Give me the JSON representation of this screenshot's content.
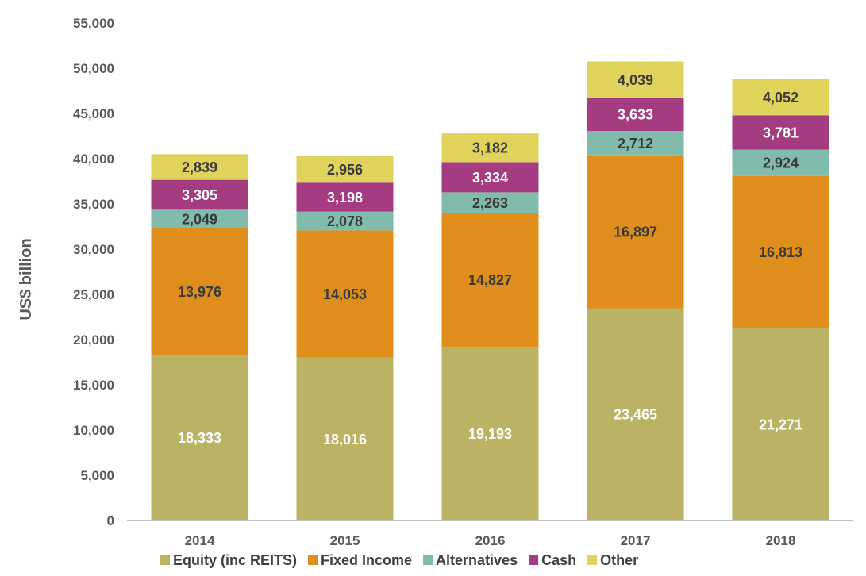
{
  "chart_data": {
    "type": "bar",
    "stacked": true,
    "title": "",
    "xlabel": "",
    "ylabel": "US$ billion",
    "ylim": [
      0,
      55000
    ],
    "yticks": [
      0,
      5000,
      10000,
      15000,
      20000,
      25000,
      30000,
      35000,
      40000,
      45000,
      50000,
      55000
    ],
    "ytick_labels": [
      "0",
      "5,000",
      "10,000",
      "15,000",
      "20,000",
      "25,000",
      "30,000",
      "35,000",
      "40,000",
      "45,000",
      "50,000",
      "55,000"
    ],
    "categories": [
      "2014",
      "2015",
      "2016",
      "2017",
      "2018"
    ],
    "grid": false,
    "legend_position": "bottom",
    "series": [
      {
        "name": "Equity (inc REITS)",
        "color": "#bab363",
        "label_color": "#ffffff",
        "values": [
          18333,
          18016,
          19193,
          23465,
          21271
        ],
        "labels": [
          "18,333",
          "18,016",
          "19,193",
          "23,465",
          "21,271"
        ]
      },
      {
        "name": "Fixed Income",
        "color": "#df8e1c",
        "label_color": "#3a3a3a",
        "values": [
          13976,
          14053,
          14827,
          16897,
          16813
        ],
        "labels": [
          "13,976",
          "14,053",
          "14,827",
          "16,897",
          "16,813"
        ]
      },
      {
        "name": "Alternatives",
        "color": "#80bbab",
        "label_color": "#3a3a3a",
        "values": [
          2049,
          2078,
          2263,
          2712,
          2924
        ],
        "labels": [
          "2,049",
          "2,078",
          "2,263",
          "2,712",
          "2,924"
        ]
      },
      {
        "name": "Cash",
        "color": "#a53b80",
        "label_color": "#ffffff",
        "values": [
          3305,
          3198,
          3334,
          3633,
          3781
        ],
        "labels": [
          "3,305",
          "3,198",
          "3,334",
          "3,633",
          "3,781"
        ]
      },
      {
        "name": "Other",
        "color": "#e0d35c",
        "label_color": "#3a3a3a",
        "values": [
          2839,
          2956,
          3182,
          4039,
          4052
        ],
        "labels": [
          "2,839",
          "2,956",
          "3,182",
          "4,039",
          "4,052"
        ]
      }
    ]
  }
}
